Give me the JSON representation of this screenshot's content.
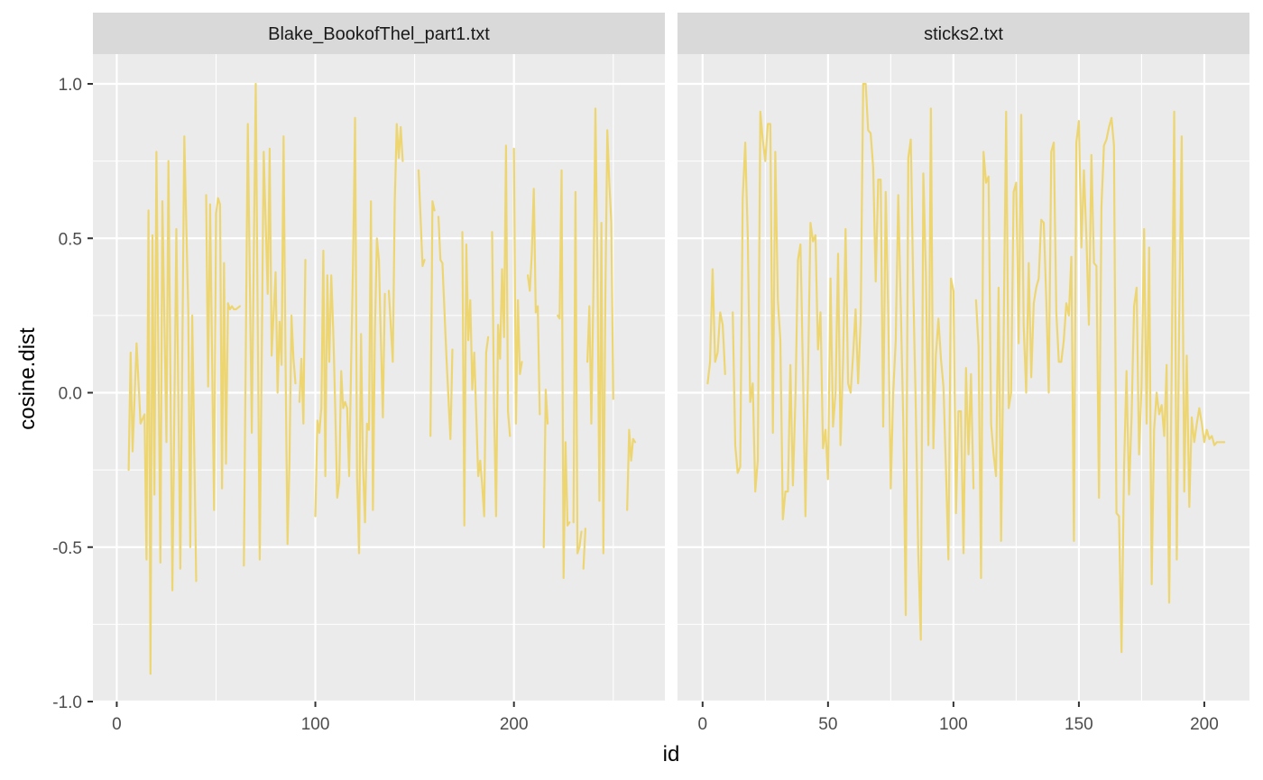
{
  "chart_data": {
    "type": "line",
    "title": "",
    "xlabel": "id",
    "ylabel": "cosine.dist",
    "ylim": [
      -1.0,
      1.0
    ],
    "y_ticks": [
      -1.0,
      -0.5,
      0.0,
      0.5,
      1.0
    ],
    "y_tick_labels": [
      "-1.0",
      "-0.5",
      "0.0",
      "0.5",
      "1.0"
    ],
    "line_color": "#EDD672",
    "panel_background": "#EBEBEB",
    "strip_background": "#D9D9D9",
    "grid": true,
    "legend": "none",
    "panels": [
      {
        "strip": "Blake_BookofThel_part1.txt",
        "xlim": [
          -12,
          276
        ],
        "x_ticks": [
          0,
          100,
          200
        ],
        "x_tick_labels": [
          "0",
          "100",
          "200"
        ],
        "segments": [
          {
            "x": [
              6,
              7,
              8,
              10,
              12,
              14,
              15,
              16,
              17,
              18,
              19,
              20,
              22,
              23,
              25,
              26,
              28,
              30,
              32,
              34,
              36,
              37,
              38,
              40
            ],
            "y": [
              -0.25,
              0.13,
              -0.19,
              0.16,
              -0.1,
              -0.07,
              -0.54,
              0.59,
              -0.91,
              0.51,
              -0.33,
              0.78,
              -0.55,
              0.62,
              -0.16,
              0.75,
              -0.64,
              0.53,
              -0.57,
              0.83,
              0.26,
              -0.5,
              0.25,
              -0.61
            ]
          },
          {
            "x": [
              45,
              46,
              47,
              49,
              50,
              51,
              52,
              53,
              54,
              55,
              56,
              57,
              58,
              59,
              60,
              62
            ],
            "y": [
              0.64,
              0.02,
              0.61,
              -0.38,
              0.58,
              0.63,
              0.61,
              -0.31,
              0.42,
              -0.23,
              0.29,
              0.27,
              0.28,
              0.27,
              0.27,
              0.28
            ]
          },
          {
            "x": [
              64,
              66,
              68,
              70,
              72,
              74,
              76,
              77,
              78,
              80,
              81,
              82,
              83,
              84,
              85,
              86,
              87,
              88,
              89,
              90
            ],
            "y": [
              -0.56,
              0.87,
              -0.13,
              1.0,
              -0.54,
              0.78,
              0.32,
              0.79,
              0.12,
              0.39,
              0.0,
              0.23,
              0.09,
              0.83,
              0.1,
              -0.49,
              -0.22,
              0.25,
              0.11,
              0.03
            ]
          },
          {
            "x": [
              92,
              93,
              94,
              95
            ],
            "y": [
              -0.03,
              0.11,
              -0.1,
              0.43
            ]
          },
          {
            "x": [
              100,
              101,
              102,
              103,
              104,
              105,
              106,
              107,
              108,
              109,
              110,
              111,
              112,
              113,
              114,
              115,
              116,
              117,
              118,
              119,
              120,
              121,
              122,
              123,
              124,
              125,
              126,
              127,
              128,
              129,
              130,
              131,
              132,
              133,
              134,
              135
            ],
            "y": [
              -0.4,
              -0.09,
              -0.13,
              -0.05,
              0.46,
              -0.27,
              0.38,
              0.1,
              0.38,
              0.2,
              -0.05,
              -0.34,
              -0.29,
              0.07,
              -0.05,
              -0.03,
              -0.05,
              -0.27,
              0.09,
              0.43,
              0.89,
              -0.27,
              -0.52,
              0.19,
              -0.24,
              -0.42,
              -0.1,
              -0.12,
              0.62,
              -0.38,
              0.2,
              0.5,
              0.43,
              0.17,
              -0.08,
              0.32
            ]
          },
          {
            "x": [
              137,
              139,
              140,
              141,
              142,
              143,
              144
            ],
            "y": [
              0.33,
              0.1,
              0.62,
              0.87,
              0.76,
              0.86,
              0.75
            ]
          },
          {
            "x": [
              152,
              154,
              155
            ],
            "y": [
              0.72,
              0.41,
              0.43
            ]
          },
          {
            "x": [
              158,
              159,
              160
            ],
            "y": [
              -0.14,
              0.62,
              0.59
            ]
          },
          {
            "x": [
              162,
              163,
              164,
              166,
              168,
              169
            ],
            "y": [
              0.57,
              0.43,
              0.42,
              0.12,
              -0.15,
              0.14
            ]
          },
          {
            "x": [
              174,
              175,
              176,
              177,
              178,
              179,
              180,
              181,
              182,
              183,
              184,
              185,
              186,
              187
            ],
            "y": [
              0.52,
              -0.43,
              0.48,
              0.17,
              0.3,
              0.01,
              0.13,
              -0.07,
              -0.27,
              -0.22,
              -0.3,
              -0.4,
              0.13,
              0.18
            ]
          },
          {
            "x": [
              189,
              190,
              191,
              192,
              193,
              194,
              195,
              196,
              197,
              198
            ],
            "y": [
              0.52,
              -0.06,
              -0.4,
              0.22,
              0.11,
              0.4,
              0.18,
              0.8,
              -0.06,
              -0.14
            ]
          },
          {
            "x": [
              200,
              201,
              202,
              203,
              204
            ],
            "y": [
              0.79,
              -0.1,
              0.3,
              0.06,
              0.1
            ]
          },
          {
            "x": [
              207,
              208,
              209,
              210,
              211,
              212,
              213
            ],
            "y": [
              0.38,
              0.33,
              0.45,
              0.66,
              0.26,
              0.28,
              -0.07
            ]
          },
          {
            "x": [
              215,
              216,
              217
            ],
            "y": [
              -0.5,
              0.01,
              -0.1
            ]
          },
          {
            "x": [
              222,
              223,
              224,
              225,
              226,
              227,
              228
            ],
            "y": [
              0.25,
              0.24,
              0.72,
              -0.6,
              -0.16,
              -0.43,
              -0.42
            ]
          },
          {
            "x": [
              230,
              231,
              232,
              233,
              234
            ],
            "y": [
              -0.42,
              0.65,
              -0.52,
              -0.5,
              -0.45
            ]
          },
          {
            "x": [
              235,
              236
            ],
            "y": [
              -0.57,
              -0.44
            ]
          },
          {
            "x": [
              237,
              238,
              239,
              240,
              241,
              242,
              243,
              244,
              245,
              246,
              247,
              248,
              249,
              250
            ],
            "y": [
              0.1,
              0.28,
              -0.1,
              0.33,
              0.92,
              0.42,
              -0.35,
              0.55,
              -0.52,
              0.3,
              0.85,
              0.68,
              0.55,
              -0.02
            ]
          },
          {
            "x": [
              257,
              258,
              259,
              260,
              261
            ],
            "y": [
              -0.38,
              -0.12,
              -0.22,
              -0.15,
              -0.16
            ]
          }
        ]
      },
      {
        "strip": "sticks2.txt",
        "xlim": [
          -10,
          218
        ],
        "x_ticks": [
          0,
          50,
          100,
          150,
          200
        ],
        "x_tick_labels": [
          "0",
          "50",
          "100",
          "150",
          "200"
        ],
        "segments": [
          {
            "x": [
              2,
              3,
              4,
              5,
              6,
              7,
              8,
              9
            ],
            "y": [
              0.03,
              0.1,
              0.4,
              0.1,
              0.13,
              0.26,
              0.22,
              0.06
            ]
          },
          {
            "x": [
              12,
              13,
              14,
              15,
              16,
              17,
              18,
              19,
              20,
              21,
              22,
              23,
              24,
              25,
              26,
              27,
              28,
              29,
              30,
              31,
              32,
              33,
              34,
              35,
              36,
              37,
              38,
              39,
              40,
              41,
              42,
              43,
              44,
              45,
              46,
              47,
              48,
              49,
              50,
              51,
              52,
              53,
              54,
              55,
              56,
              57,
              58,
              59,
              60,
              61,
              62,
              63,
              64,
              65,
              66,
              67,
              68,
              69,
              70,
              71,
              72,
              73,
              74,
              75,
              76,
              77,
              78,
              79,
              80,
              81,
              82,
              83,
              84,
              85,
              86,
              87,
              88,
              89,
              90,
              91,
              92,
              93,
              94,
              95,
              96,
              97,
              98,
              99,
              100,
              101,
              102,
              103,
              104,
              105,
              106,
              107,
              108
            ],
            "y": [
              0.26,
              -0.17,
              -0.26,
              -0.24,
              0.63,
              0.81,
              0.5,
              -0.03,
              0.03,
              -0.32,
              -0.22,
              0.91,
              0.82,
              0.75,
              0.87,
              0.87,
              -0.13,
              0.78,
              0.3,
              0.17,
              -0.41,
              -0.32,
              -0.32,
              0.09,
              -0.3,
              -0.02,
              0.43,
              0.48,
              0.08,
              -0.4,
              0.05,
              0.55,
              0.49,
              0.51,
              0.14,
              0.26,
              -0.18,
              -0.12,
              -0.28,
              0.37,
              -0.11,
              0.0,
              0.45,
              -0.17,
              0.1,
              0.53,
              0.03,
              0.0,
              0.12,
              0.27,
              0.03,
              0.23,
              1.0,
              1.0,
              0.85,
              0.84,
              0.73,
              0.36,
              0.69,
              0.69,
              -0.11,
              0.65,
              0.25,
              -0.31,
              0.0,
              0.17,
              0.64,
              0.28,
              -0.1,
              -0.72,
              0.76,
              0.82,
              0.33,
              -0.06,
              -0.52,
              -0.8,
              0.71,
              0.39,
              -0.17,
              0.92,
              -0.18,
              0.12,
              0.24,
              0.11,
              0.02,
              -0.24,
              -0.54,
              0.37,
              0.33,
              -0.39,
              -0.06,
              -0.06,
              -0.52,
              0.08,
              -0.2,
              0.06,
              -0.31
            ]
          },
          {
            "x": [
              109,
              110,
              111,
              112,
              113,
              114,
              115,
              116,
              117,
              118,
              119,
              120,
              121,
              122,
              123,
              124,
              125,
              126,
              127,
              128,
              129,
              130,
              131,
              132,
              133,
              134,
              135,
              136,
              137,
              138,
              139,
              140,
              141,
              142,
              143,
              144,
              145,
              146,
              147,
              148,
              149,
              150,
              151,
              152,
              153,
              154,
              155,
              156,
              157,
              158,
              159,
              160,
              161,
              162,
              163,
              164,
              165,
              166,
              167,
              168,
              169,
              170,
              171,
              172,
              173,
              174,
              175,
              176,
              177,
              178,
              179,
              180,
              181,
              182,
              183,
              184,
              185,
              186,
              187,
              188,
              189,
              190,
              191,
              192,
              193,
              194,
              195,
              196,
              197,
              198,
              199,
              200,
              201,
              202,
              203,
              204,
              205,
              206,
              207,
              208
            ],
            "y": [
              0.3,
              0.15,
              -0.6,
              0.78,
              0.68,
              0.7,
              -0.1,
              -0.2,
              -0.27,
              0.34,
              -0.48,
              0.18,
              0.91,
              -0.05,
              0.0,
              0.65,
              0.68,
              0.16,
              0.9,
              0.22,
              0.0,
              0.42,
              0.05,
              0.29,
              0.34,
              0.37,
              0.56,
              0.55,
              0.3,
              0.0,
              0.78,
              0.81,
              0.26,
              0.1,
              0.1,
              0.17,
              0.29,
              0.25,
              0.44,
              -0.48,
              0.81,
              0.88,
              0.47,
              0.72,
              0.5,
              0.22,
              0.77,
              0.42,
              0.41,
              -0.34,
              0.6,
              0.8,
              0.82,
              0.86,
              0.89,
              0.8,
              -0.39,
              -0.4,
              -0.84,
              -0.24,
              0.07,
              -0.33,
              -0.08,
              0.28,
              0.34,
              -0.2,
              0.02,
              0.53,
              -0.1,
              0.47,
              -0.62,
              -0.12,
              0.0,
              -0.07,
              -0.04,
              -0.14,
              0.09,
              -0.68,
              0.09,
              0.91,
              -0.54,
              0.23,
              0.83,
              -0.32,
              0.12,
              -0.37,
              -0.08,
              -0.16,
              -0.1,
              -0.05,
              -0.1,
              -0.16,
              -0.12,
              -0.15,
              -0.14,
              -0.17,
              -0.16,
              -0.16,
              -0.16,
              -0.16
            ]
          }
        ]
      }
    ]
  }
}
